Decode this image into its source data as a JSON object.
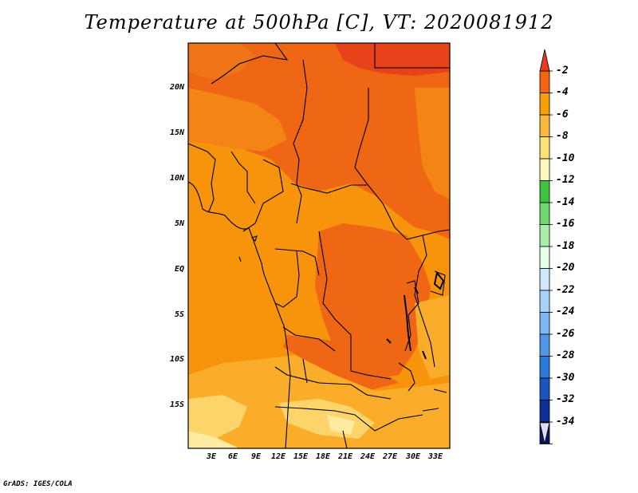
{
  "title": "Temperature at 500hPa [C], VT: 2020081912",
  "credit": "GrADS: IGES/COLA",
  "lat_labels": [
    "20N",
    "15N",
    "10N",
    "5N",
    "EQ",
    "5S",
    "10S",
    "15S"
  ],
  "lon_labels": [
    "3E",
    "6E",
    "9E",
    "12E",
    "15E",
    "18E",
    "21E",
    "24E",
    "27E",
    "30E",
    "33E"
  ],
  "colorbar": {
    "labels": [
      "-2",
      "-4",
      "-6",
      "-8",
      "-10",
      "-12",
      "-14",
      "-16",
      "-18",
      "-20",
      "-22",
      "-24",
      "-26",
      "-28",
      "-30",
      "-32",
      "-34"
    ],
    "colors": [
      "#e83c1e",
      "#f3650f",
      "#f7a006",
      "#fbb63c",
      "#fde27a",
      "#fff9c0",
      "#3ec33e",
      "#6fd86f",
      "#a8eea8",
      "#e4ffe8",
      "#cfe8ff",
      "#a7d3fb",
      "#7ab8f3",
      "#4d97e6",
      "#2a78d8",
      "#1a55bd",
      "#0e2f96",
      "#0a1366",
      "#dcdcf5"
    ]
  },
  "field_colors": {
    "dark_red": "#e8421a",
    "red_orange": "#ef6614",
    "orange": "#f7940c",
    "light_orange": "#f9ad2a",
    "yellow": "#fcd46a",
    "pale_yellow": "#feeaa0"
  }
}
